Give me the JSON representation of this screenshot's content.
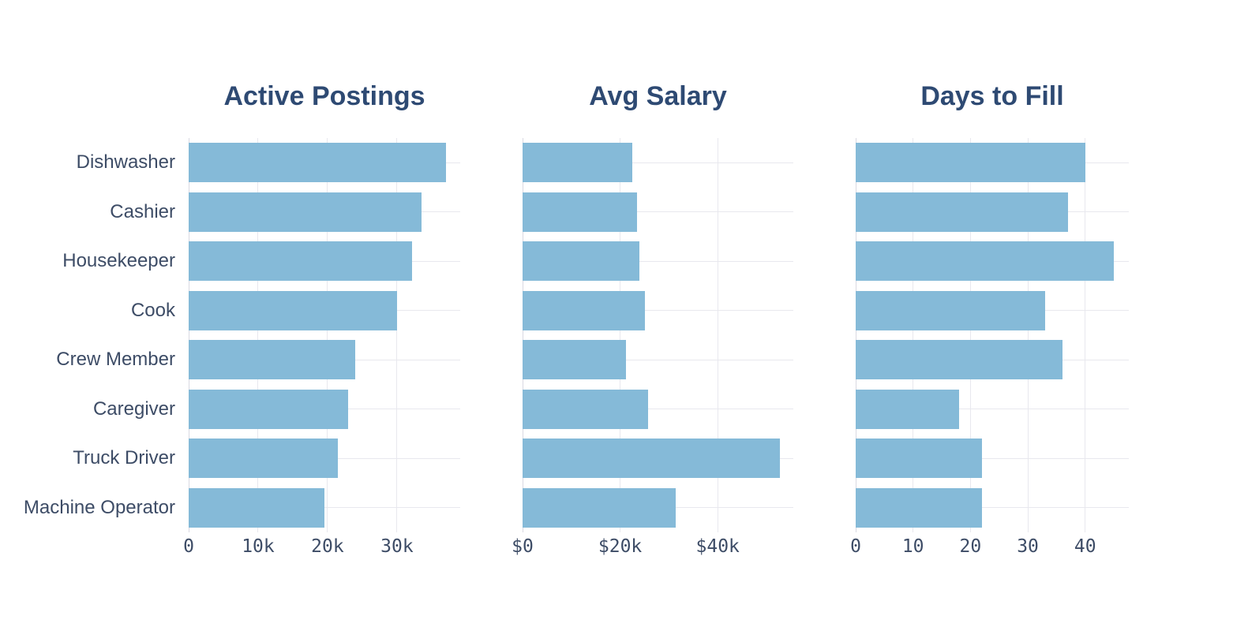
{
  "page": {
    "background": "#ffffff"
  },
  "colors": {
    "bar": "#85bad8",
    "grid": "#e8e8ee",
    "zeroline": "#d9d9e2",
    "title": "#2e4a73",
    "label": "#3d4c66"
  },
  "categories": [
    "Dishwasher",
    "Cashier",
    "Housekeeper",
    "Cook",
    "Crew Member",
    "Caregiver",
    "Truck Driver",
    "Machine Operator"
  ],
  "chart_data": [
    {
      "type": "bar",
      "orientation": "horizontal",
      "title": "Active Postings",
      "categories": [
        "Dishwasher",
        "Cashier",
        "Housekeeper",
        "Cook",
        "Crew Member",
        "Caregiver",
        "Truck Driver",
        "Machine Operator"
      ],
      "values": [
        37000,
        33500,
        32200,
        30000,
        24000,
        23000,
        21500,
        19500
      ],
      "xlabel": "",
      "ylabel": "",
      "xlim": [
        0,
        39100
      ],
      "xticks": [
        {
          "value": 0,
          "label": "0"
        },
        {
          "value": 10000,
          "label": "10k"
        },
        {
          "value": 20000,
          "label": "20k"
        },
        {
          "value": 30000,
          "label": "30k"
        }
      ],
      "grid": true,
      "legend": false
    },
    {
      "type": "bar",
      "orientation": "horizontal",
      "title": "Avg Salary",
      "categories": [
        "Dishwasher",
        "Cashier",
        "Housekeeper",
        "Cook",
        "Crew Member",
        "Caregiver",
        "Truck Driver",
        "Machine Operator"
      ],
      "values": [
        22500,
        23400,
        23900,
        25000,
        21200,
        25800,
        52700,
        31400
      ],
      "xlabel": "",
      "ylabel": "",
      "xlim": [
        0,
        55500
      ],
      "xticks": [
        {
          "value": 0,
          "label": "$0"
        },
        {
          "value": 20000,
          "label": "$20k"
        },
        {
          "value": 40000,
          "label": "$40k"
        }
      ],
      "grid": true,
      "legend": false
    },
    {
      "type": "bar",
      "orientation": "horizontal",
      "title": "Days to Fill",
      "categories": [
        "Dishwasher",
        "Cashier",
        "Housekeeper",
        "Cook",
        "Crew Member",
        "Caregiver",
        "Truck Driver",
        "Machine Operator"
      ],
      "values": [
        40,
        37,
        45,
        33,
        36,
        18,
        22,
        22
      ],
      "xlabel": "",
      "ylabel": "",
      "xlim": [
        0,
        47.6
      ],
      "xticks": [
        {
          "value": 0,
          "label": "0"
        },
        {
          "value": 10,
          "label": "10"
        },
        {
          "value": 20,
          "label": "20"
        },
        {
          "value": 30,
          "label": "30"
        },
        {
          "value": 40,
          "label": "40"
        }
      ],
      "grid": true,
      "legend": false
    }
  ]
}
